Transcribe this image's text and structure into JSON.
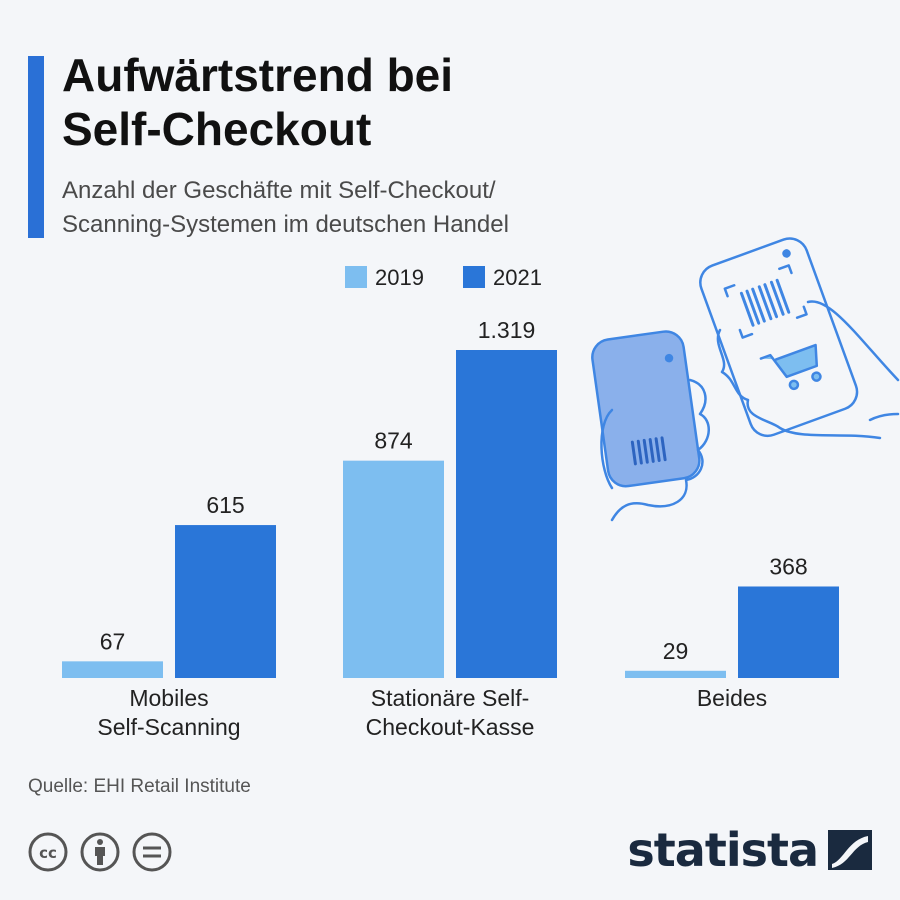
{
  "header": {
    "title_line1": "Aufwärtstrend bei",
    "title_line2": "Self-Checkout",
    "subtitle_line1": "Anzahl der Geschäfte mit Self-Checkout/",
    "subtitle_line2": "Scanning-Systemen im deutschen Handel"
  },
  "colors": {
    "accent": "#2a70d6",
    "series_2019": "#7dbef0",
    "series_2021": "#2a76d8",
    "illustration_stroke": "#3f86e3",
    "illustration_fill": "#8ab0eb"
  },
  "chart_data": {
    "type": "bar",
    "categories": [
      [
        "Mobiles",
        "Self-Scanning"
      ],
      [
        "Stationäre Self-",
        "Checkout-Kasse"
      ],
      [
        "Beides"
      ]
    ],
    "series": [
      {
        "name": "2019",
        "values": [
          67,
          874,
          29
        ],
        "labels": [
          "67",
          "874",
          "29"
        ]
      },
      {
        "name": "2021",
        "values": [
          615,
          1319,
          368
        ],
        "labels": [
          "615",
          "1.319",
          "368"
        ]
      }
    ],
    "legend_position": "top",
    "grid": false
  },
  "footer": {
    "source": "Quelle: EHI Retail Institute",
    "brand": "statista",
    "license_icons": [
      "cc-icon",
      "by-icon",
      "nd-icon"
    ]
  }
}
